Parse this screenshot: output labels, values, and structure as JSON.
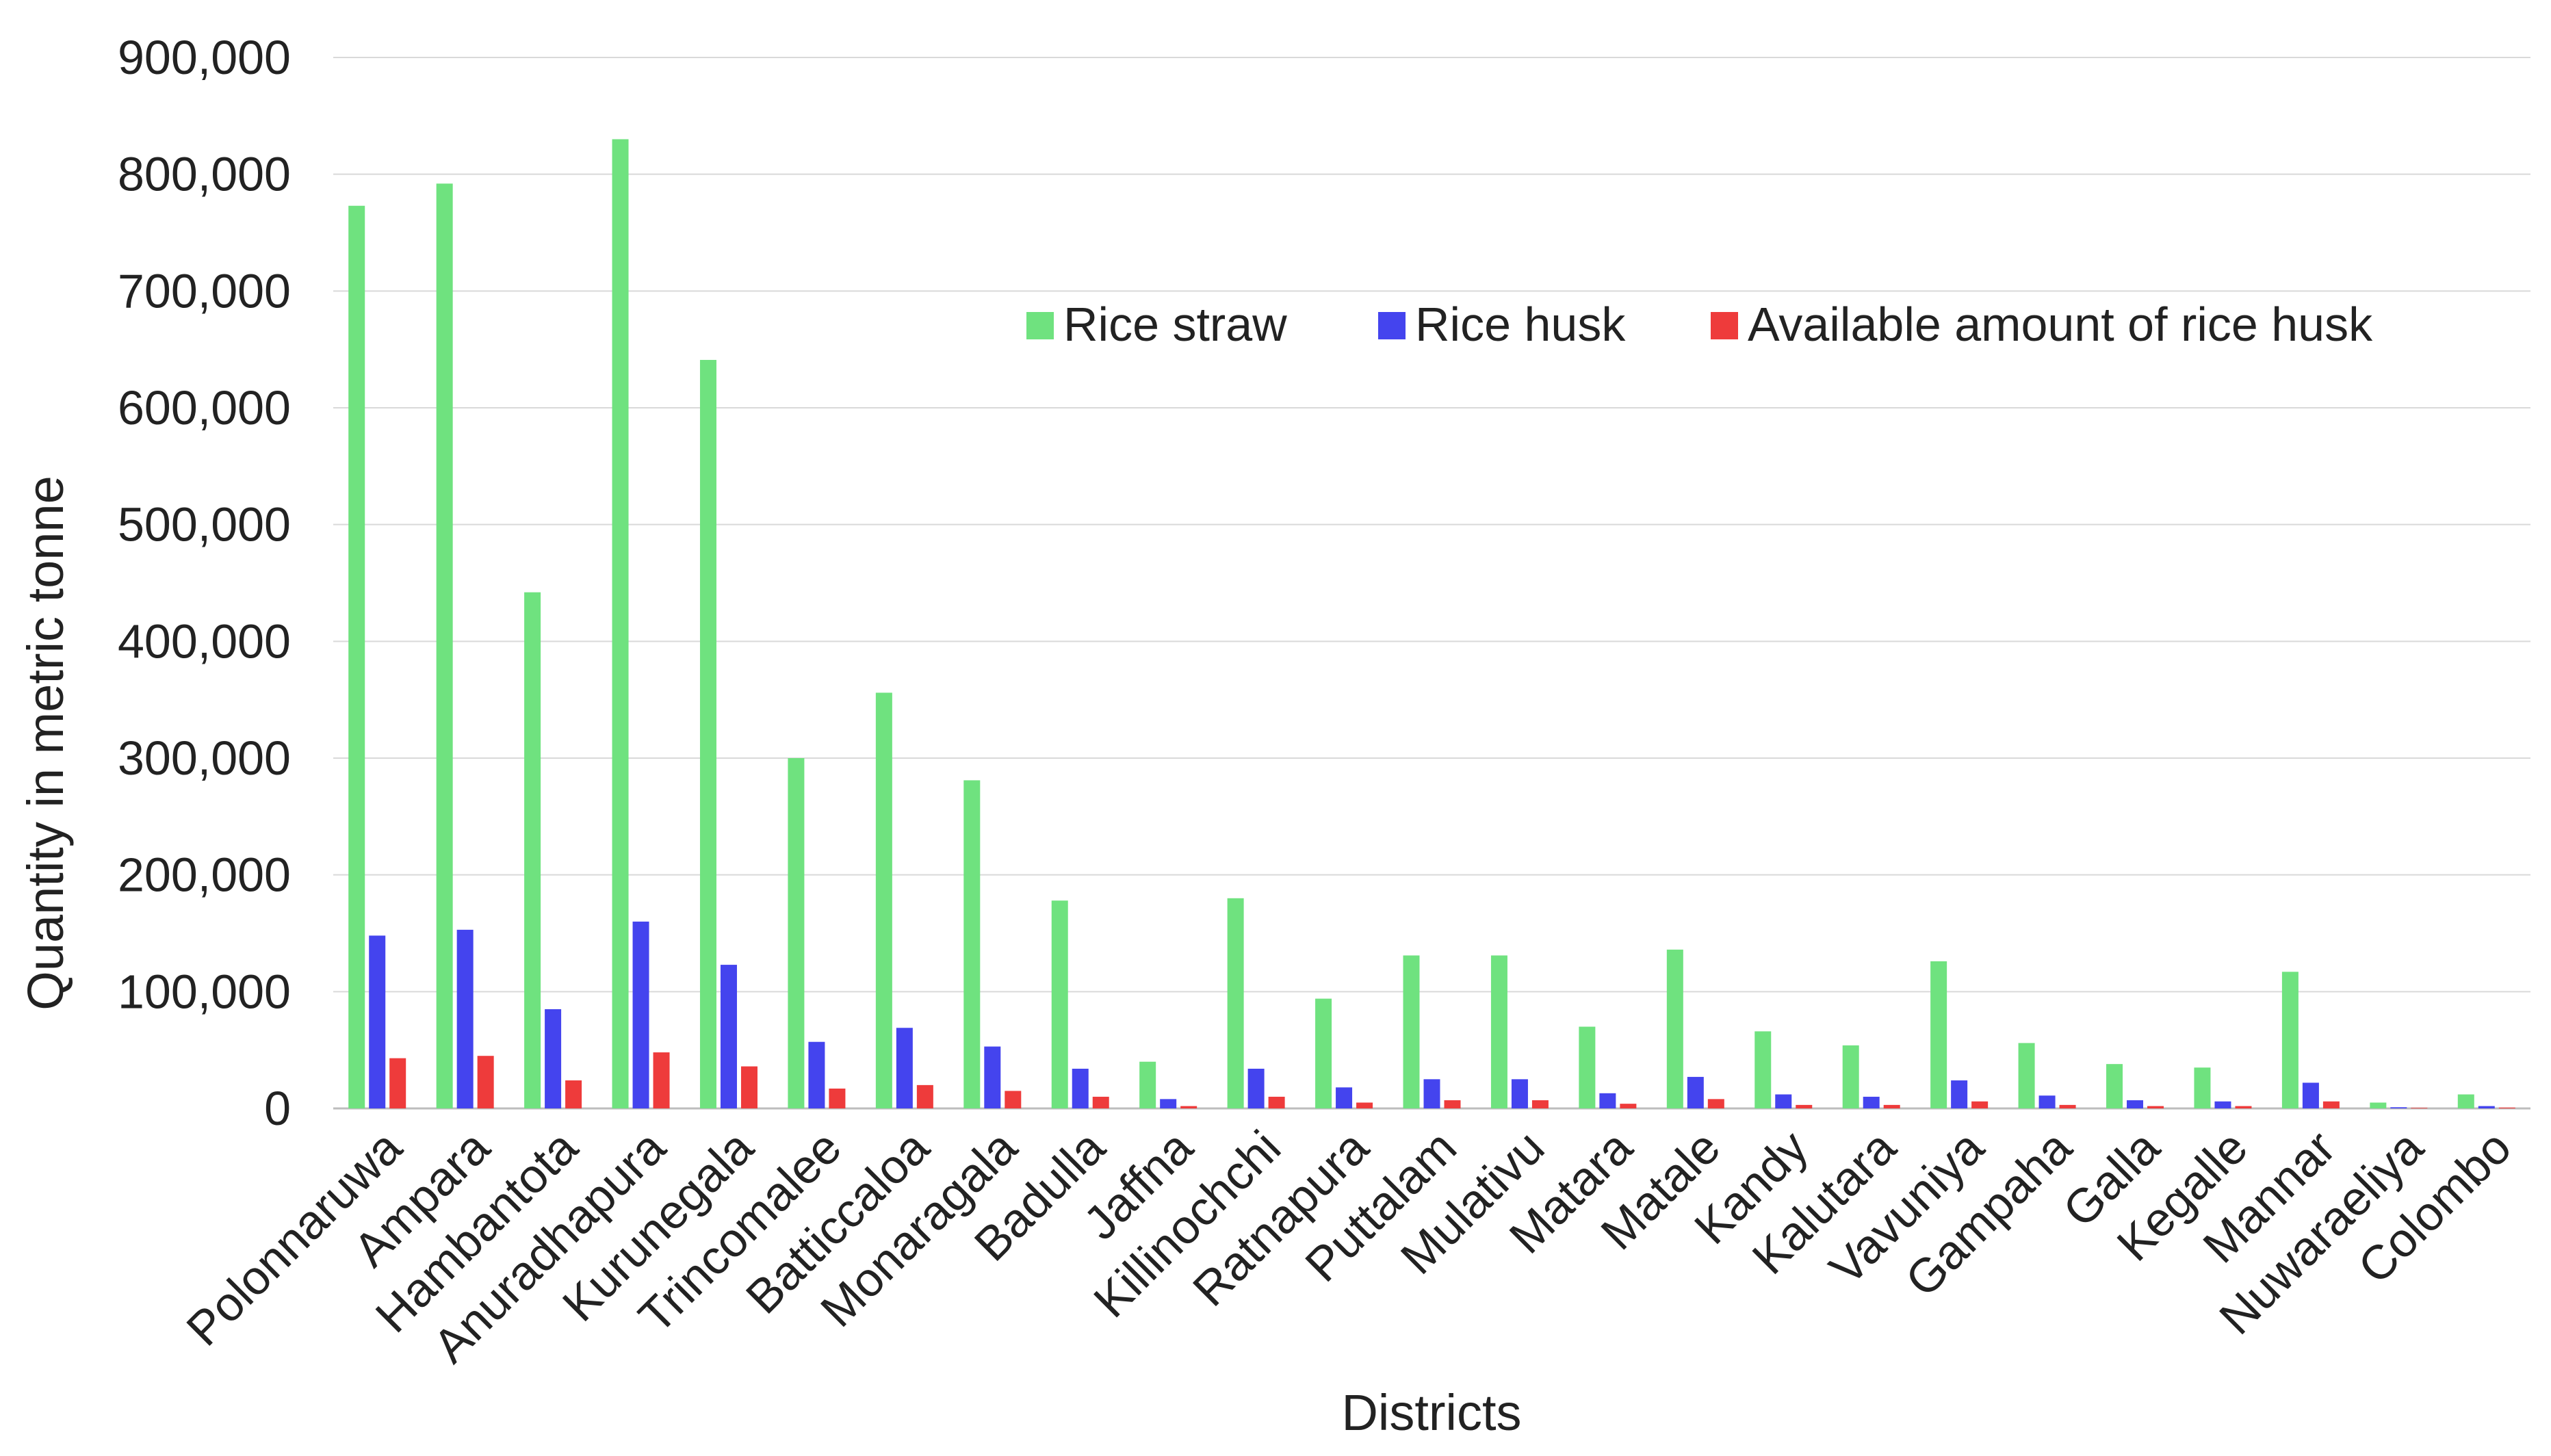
{
  "chart_data": {
    "type": "bar",
    "title": "",
    "xlabel": "Districts",
    "ylabel": "Quantity in metric tonne",
    "ylim": [
      0,
      900000
    ],
    "yticks": [
      0,
      100000,
      200000,
      300000,
      400000,
      500000,
      600000,
      700000,
      800000,
      900000
    ],
    "ytick_labels": [
      "0",
      "100,000",
      "200,000",
      "300,000",
      "400,000",
      "500,000",
      "600,000",
      "700,000",
      "800,000",
      "900,000"
    ],
    "grid": true,
    "legend_position": "top-right",
    "categories": [
      "Polonnaruwa",
      "Ampara",
      "Hambantota",
      "Anuradhapura",
      "Kurunegala",
      "Trincomalee",
      "Batticcaloa",
      "Monaragala",
      "Badulla",
      "Jaffna",
      "Killinochchi",
      "Ratnapura",
      "Puttalam",
      "Mulativu",
      "Matara",
      "Matale",
      "Kandy",
      "Kalutara",
      "Vavuniya",
      "Gampaha",
      "Galla",
      "Kegalle",
      "Mannar",
      "Nuwaraeliya",
      "Colombo"
    ],
    "series": [
      {
        "name": "Rice straw",
        "color": "#6fe27f",
        "values": [
          773000,
          792000,
          442000,
          830000,
          641000,
          300000,
          356000,
          281000,
          178000,
          40000,
          180000,
          94000,
          131000,
          131000,
          70000,
          136000,
          66000,
          54000,
          126000,
          56000,
          38000,
          35000,
          117000,
          5000,
          12000
        ]
      },
      {
        "name": "Rice husk",
        "color": "#4444ee",
        "values": [
          148000,
          153000,
          85000,
          160000,
          123000,
          57000,
          69000,
          53000,
          34000,
          8000,
          34000,
          18000,
          25000,
          25000,
          13000,
          27000,
          12000,
          10000,
          24000,
          11000,
          7000,
          6000,
          22000,
          1000,
          2000
        ]
      },
      {
        "name": "Available amount of rice husk",
        "color": "#ee3b3b",
        "values": [
          43000,
          45000,
          24000,
          48000,
          36000,
          17000,
          20000,
          15000,
          10000,
          2000,
          10000,
          5000,
          7000,
          7000,
          4000,
          8000,
          3000,
          3000,
          6000,
          3000,
          2000,
          2000,
          6000,
          500,
          700
        ]
      }
    ]
  }
}
